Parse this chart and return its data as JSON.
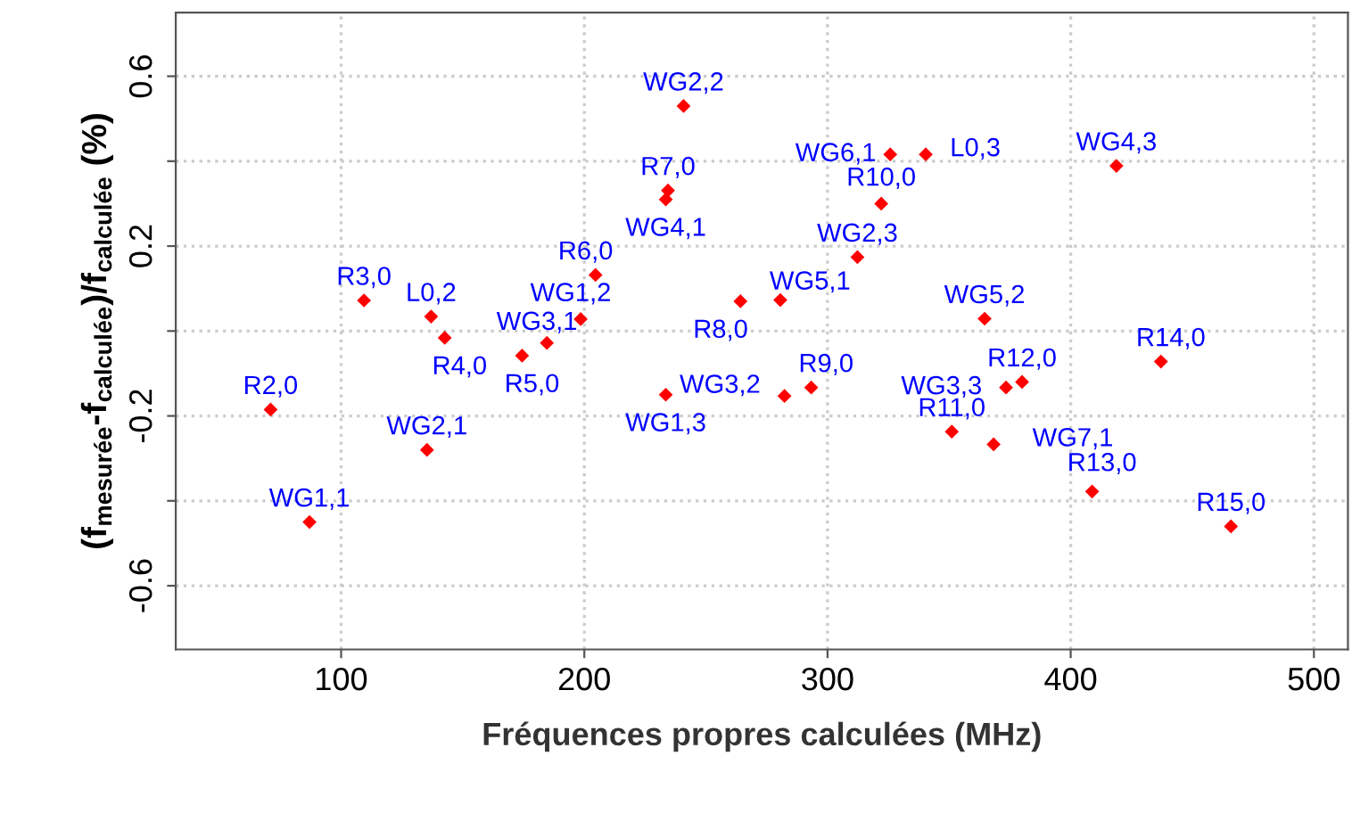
{
  "chart_data": {
    "type": "scatter",
    "xlabel": "Fréquences propres calculées (MHz)",
    "ylabel": "(f$_{mesurée}$-f$_{calculée}$)/f$_{calculée}$ (%)",
    "series": [
      {
        "color": "#ff0000",
        "marker": "diamond",
        "x": [
          71,
          87,
          135.3,
          142.6,
          174.4,
          184.6,
          109.4,
          137,
          198.5,
          204.6,
          240.8,
          234.4,
          233.5,
          325.8,
          340.4,
          322.1,
          418.8,
          312.3,
          280.6,
          264.2,
          364.6,
          233.5,
          282.3,
          293.3,
          351.1,
          368.3,
          373.4,
          380,
          437.1,
          408.8,
          465.9
        ],
        "values": [
          -0.185,
          -0.45,
          -0.28,
          -0.016,
          -0.058,
          -0.028,
          0.072,
          0.034,
          0.028,
          0.132,
          0.53,
          0.331,
          0.31,
          0.416,
          0.416,
          0.3,
          0.389,
          0.174,
          0.073,
          0.07,
          0.029,
          -0.15,
          -0.153,
          -0.133,
          -0.237,
          -0.267,
          -0.133,
          -0.12,
          -0.072,
          -0.378,
          -0.46
        ]
      }
    ],
    "annotations": [
      {
        "text": "R2,0",
        "x": 71,
        "y": -0.185
      },
      {
        "text": "WG1,1",
        "x": 87,
        "y": -0.45
      },
      {
        "text": "WG2,1",
        "x": 135.3,
        "y": -0.28
      },
      {
        "text": "R4,0",
        "x": 142.6,
        "y": -0.016
      },
      {
        "text": "R5,0",
        "x": 174.4,
        "y": -0.058
      },
      {
        "text": "WG3,1",
        "x": 184.6,
        "y": -0.028
      },
      {
        "text": "R3,0",
        "x": 109.4,
        "y": 0.072
      },
      {
        "text": "L0,2",
        "x": 137,
        "y": 0.034
      },
      {
        "text": "WG1,2",
        "x": 198.5,
        "y": 0.028
      },
      {
        "text": "R6,0",
        "x": 204.6,
        "y": 0.132
      },
      {
        "text": "WG2,2",
        "x": 240.8,
        "y": 0.53
      },
      {
        "text": "R7,0",
        "x": 234.4,
        "y": 0.331
      },
      {
        "text": "WG4,1",
        "x": 233.5,
        "y": 0.31
      },
      {
        "text": "WG6,1",
        "x": 325.8,
        "y": 0.416
      },
      {
        "text": "L0,3",
        "x": 340.4,
        "y": 0.416
      },
      {
        "text": "R10,0",
        "x": 322.1,
        "y": 0.3
      },
      {
        "text": "WG4,3",
        "x": 418.8,
        "y": 0.389
      },
      {
        "text": "WG2,3",
        "x": 312.3,
        "y": 0.174
      },
      {
        "text": "WG5,1",
        "x": 280.6,
        "y": 0.073
      },
      {
        "text": "R8,0",
        "x": 264.2,
        "y": 0.07
      },
      {
        "text": "WG5,2",
        "x": 364.6,
        "y": 0.029
      },
      {
        "text": "WG1,3",
        "x": 233.5,
        "y": -0.15
      },
      {
        "text": "WG3,2",
        "x": 282.3,
        "y": -0.153
      },
      {
        "text": "R9,0",
        "x": 293.3,
        "y": -0.133
      },
      {
        "text": "R11,0",
        "x": 351.1,
        "y": -0.237
      },
      {
        "text": "WG7,1",
        "x": 368.3,
        "y": -0.267
      },
      {
        "text": "WG3,3",
        "x": 373.4,
        "y": -0.133
      },
      {
        "text": "R12,0",
        "x": 380,
        "y": -0.12
      },
      {
        "text": "R14,0",
        "x": 437.1,
        "y": -0.072
      },
      {
        "text": "R13,0",
        "x": 408.8,
        "y": -0.378
      },
      {
        "text": "R15,0",
        "x": 465.9,
        "y": -0.46
      }
    ],
    "xlim": [
      32,
      514
    ],
    "ylim": [
      -0.75,
      0.75
    ],
    "xticks": [
      100,
      200,
      300,
      400,
      500
    ],
    "yticks": [
      {
        "value": -0.6,
        "label": "-0.6"
      },
      {
        "value": -0.4,
        "label": null
      },
      {
        "value": -0.2,
        "label": "-0.2"
      },
      {
        "value": 0,
        "label": null
      },
      {
        "value": 0.2,
        "label": "0.2"
      },
      {
        "value": 0.4,
        "label": null
      },
      {
        "value": 0.6,
        "label": "0.6"
      }
    ],
    "grid": true
  }
}
